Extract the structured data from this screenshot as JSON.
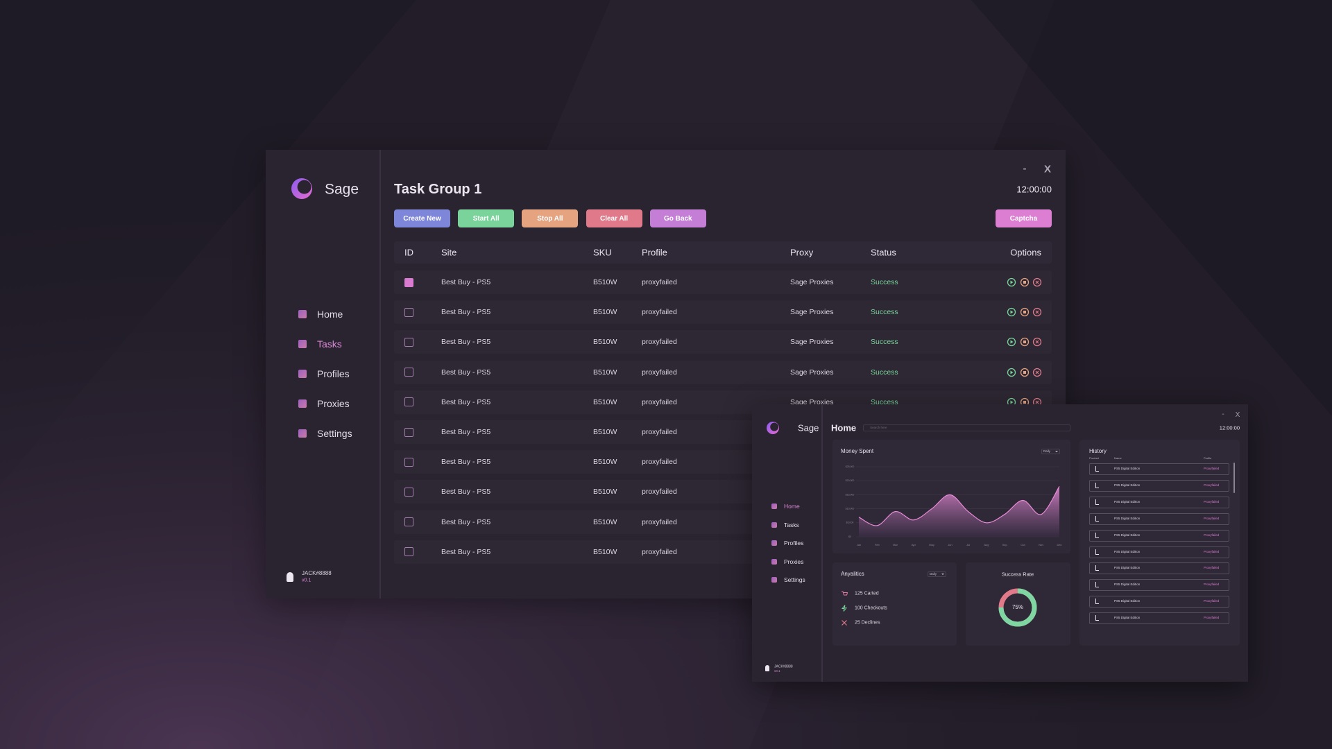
{
  "main_window": {
    "brand": "Sage",
    "nav": [
      "Home",
      "Tasks",
      "Profiles",
      "Proxies",
      "Settings"
    ],
    "active_nav": 1,
    "user": "JACK#8888",
    "version": "v0.1",
    "minimize": "-",
    "close": "X",
    "title": "Task Group 1",
    "time": "12:00:00",
    "buttons": [
      {
        "label": "Create New",
        "color": "#7d86d9"
      },
      {
        "label": "Start All",
        "color": "#79d39a"
      },
      {
        "label": "Stop All",
        "color": "#e5a37f"
      },
      {
        "label": "Clear All",
        "color": "#e07a8a"
      },
      {
        "label": "Go Back",
        "color": "#c47ed6"
      }
    ],
    "captcha": {
      "label": "Captcha",
      "color": "#dc7fd3"
    },
    "table": {
      "headers": [
        "ID",
        "Site",
        "SKU",
        "Profile",
        "Proxy",
        "Status",
        "Options"
      ],
      "rows": [
        {
          "checked": true,
          "site": "Best Buy - PS5",
          "sku": "B510W",
          "profile": "proxyfailed",
          "proxy": "Sage Proxies",
          "status": "Success"
        },
        {
          "checked": false,
          "site": "Best Buy - PS5",
          "sku": "B510W",
          "profile": "proxyfailed",
          "proxy": "Sage Proxies",
          "status": "Success"
        },
        {
          "checked": false,
          "site": "Best Buy - PS5",
          "sku": "B510W",
          "profile": "proxyfailed",
          "proxy": "Sage Proxies",
          "status": "Success"
        },
        {
          "checked": false,
          "site": "Best Buy - PS5",
          "sku": "B510W",
          "profile": "proxyfailed",
          "proxy": "Sage Proxies",
          "status": "Success"
        },
        {
          "checked": false,
          "site": "Best Buy - PS5",
          "sku": "B510W",
          "profile": "proxyfailed",
          "proxy": "Sage Proxies",
          "status": "Success"
        },
        {
          "checked": false,
          "site": "Best Buy - PS5",
          "sku": "B510W",
          "profile": "proxyfailed"
        },
        {
          "checked": false,
          "site": "Best Buy - PS5",
          "sku": "B510W",
          "profile": "proxyfailed"
        },
        {
          "checked": false,
          "site": "Best Buy - PS5",
          "sku": "B510W",
          "profile": "proxyfailed"
        },
        {
          "checked": false,
          "site": "Best Buy - PS5",
          "sku": "B510W",
          "profile": "proxyfailed"
        },
        {
          "checked": false,
          "site": "Best Buy - PS5",
          "sku": "B510W",
          "profile": "proxyfailed"
        }
      ]
    }
  },
  "home_window": {
    "brand": "Sage",
    "nav": [
      "Home",
      "Tasks",
      "Profiles",
      "Proxies",
      "Settings"
    ],
    "active_nav": 0,
    "user": "JACK#8888",
    "version": "v0.1",
    "minimize": "-",
    "close": "X",
    "title": "Home",
    "search_placeholder": "Search here",
    "time": "12:00:00",
    "money_spent": {
      "period": "Daily",
      "chart_data": {
        "type": "area",
        "title": "Money Spent",
        "categories": [
          "Jan",
          "Feb",
          "Mar",
          "Apr",
          "May",
          "Jun",
          "Jul",
          "Aug",
          "Sep",
          "Oct",
          "Nov",
          "Dec"
        ],
        "values": [
          7000,
          4000,
          9000,
          6000,
          10000,
          15000,
          9000,
          5000,
          8000,
          13000,
          8000,
          18000
        ],
        "color": "#e88bd8",
        "ylim": [
          0,
          25000
        ],
        "yticks": [
          {
            "value": 0,
            "label": "$0"
          },
          {
            "value": 5000,
            "label": "$5,000"
          },
          {
            "value": 10000,
            "label": "$10,000"
          },
          {
            "value": 15000,
            "label": "$15,000"
          },
          {
            "value": 20000,
            "label": "$20,000"
          },
          {
            "value": 25000,
            "label": "$25,000"
          }
        ],
        "grid": true
      }
    },
    "analytics": {
      "title": "Anyalitics",
      "period": "Daily",
      "items": [
        "125 Carted",
        "100 Checkouts",
        "25 Declines"
      ]
    },
    "success_rate": {
      "title": "Success Rate",
      "value": 75,
      "label": "75%"
    },
    "history": {
      "title": "History",
      "headers": [
        "Product",
        "Name",
        "Profile"
      ],
      "rows": [
        {
          "name": "PS5 Digital Edition",
          "profile": "Proxyfailed"
        },
        {
          "name": "PS5 Digital Edition",
          "profile": "Proxyfailed"
        },
        {
          "name": "PS5 Digital Edition",
          "profile": "Proxyfailed"
        },
        {
          "name": "PS5 Digital Edition",
          "profile": "Proxyfailed"
        },
        {
          "name": "PS5 Digital Edition",
          "profile": "Proxyfailed"
        },
        {
          "name": "PS5 Digital Edition",
          "profile": "Proxyfailed"
        },
        {
          "name": "PS5 Digital Edition",
          "profile": "Proxyfailed"
        },
        {
          "name": "PS5 Digital Edition",
          "profile": "Proxyfailed"
        },
        {
          "name": "PS5 Digital Edition",
          "profile": "Proxyfailed"
        },
        {
          "name": "PS5 Digital Edition",
          "profile": "Proxyfailed"
        }
      ]
    }
  }
}
